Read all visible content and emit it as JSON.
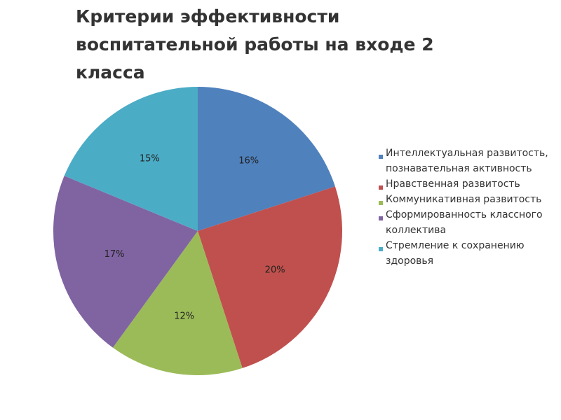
{
  "chart_data": {
    "type": "pie",
    "title": "Критерии  эффективности воспитательной работы  на входе  2 класса",
    "categories": [
      "Интеллектуальная развитость, познавательная активность",
      "Нравственная развитость",
      "Коммуникативная развитость",
      "Сформированность классного коллектива",
      "Стремление к сохранению здоровья"
    ],
    "values": [
      16,
      20,
      12,
      17,
      15
    ],
    "value_labels": [
      "16%",
      "20%",
      "12%",
      "17%",
      "15%"
    ],
    "colors": [
      "#4f81bd",
      "#c0504d",
      "#9bbb59",
      "#8064a2",
      "#4bacc6"
    ],
    "legend": "right"
  }
}
